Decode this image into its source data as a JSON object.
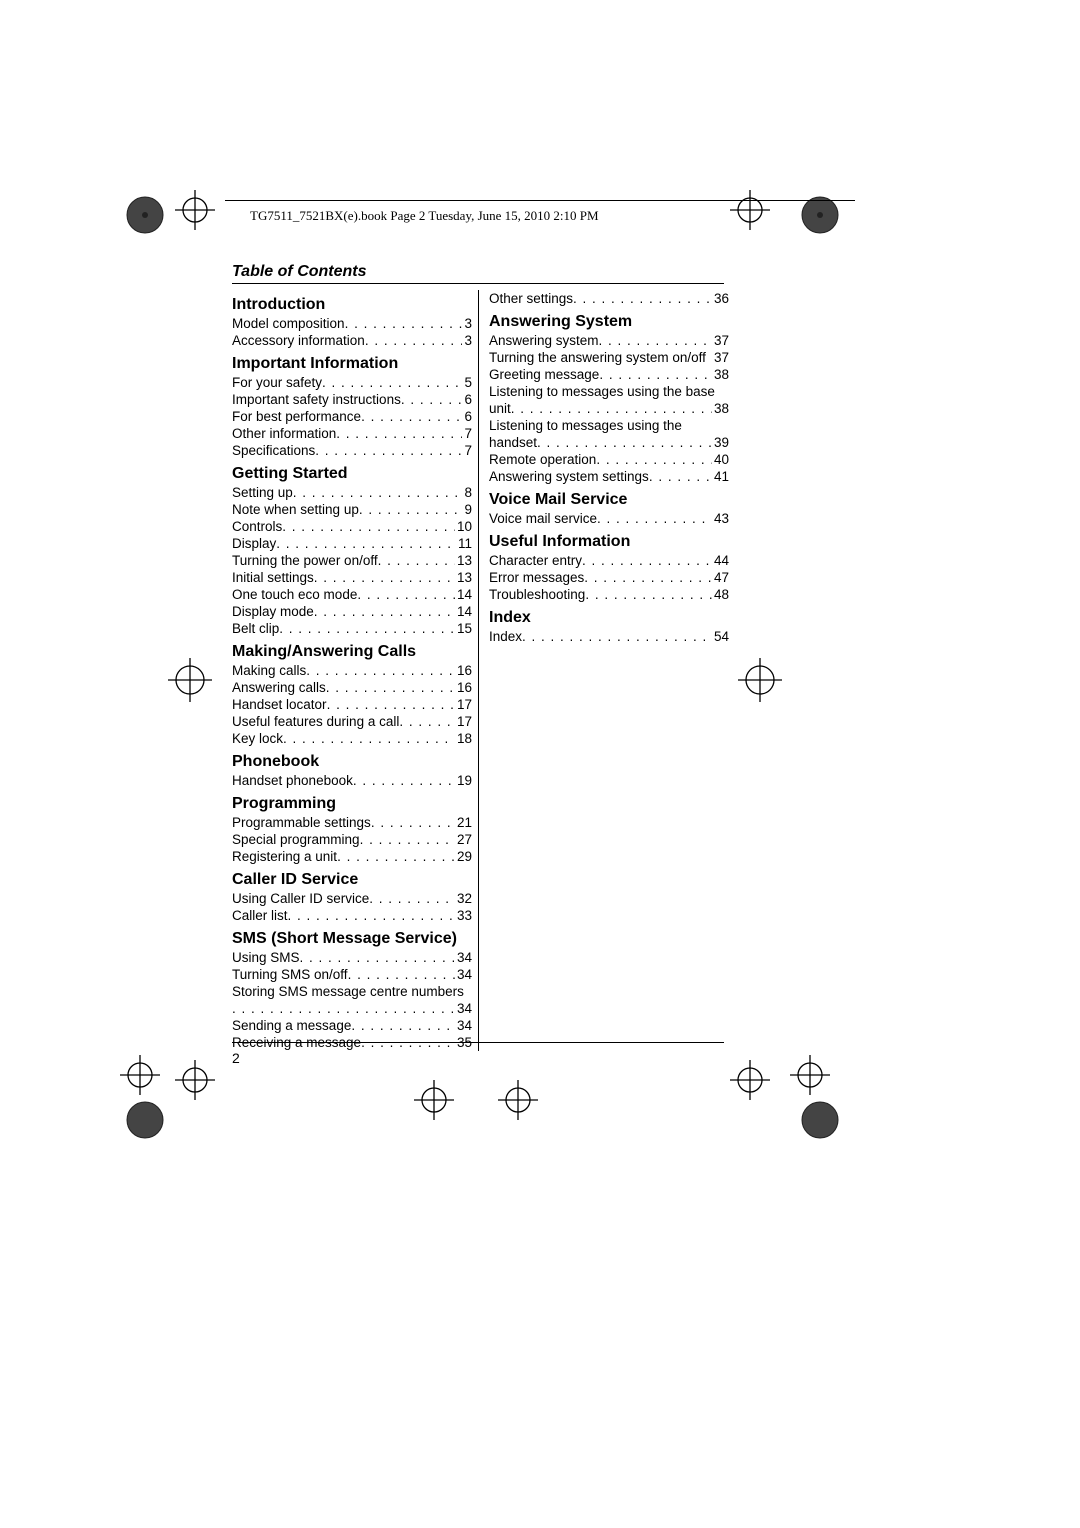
{
  "header_line": "TG7511_7521BX(e).book  Page 2  Tuesday, June 15, 2010  2:10 PM",
  "toc_title": "Table of Contents",
  "page_number": "2",
  "left_sections": [
    {
      "title": "Introduction",
      "entries": [
        {
          "label": "Model composition",
          "page": "3"
        },
        {
          "label": "Accessory information",
          "page": "3"
        }
      ]
    },
    {
      "title": "Important Information",
      "entries": [
        {
          "label": "For your safety",
          "page": "5"
        },
        {
          "label": "Important safety instructions",
          "page": "6"
        },
        {
          "label": "For best performance",
          "page": "6"
        },
        {
          "label": "Other information",
          "page": "7"
        },
        {
          "label": "Specifications",
          "page": "7"
        }
      ]
    },
    {
      "title": "Getting Started",
      "entries": [
        {
          "label": "Setting up",
          "page": "8"
        },
        {
          "label": "Note when setting up",
          "page": "9"
        },
        {
          "label": "Controls",
          "page": "10"
        },
        {
          "label": "Display",
          "page": "11"
        },
        {
          "label": "Turning the power on/off",
          "page": "13"
        },
        {
          "label": "Initial settings",
          "page": "13"
        },
        {
          "label": "One touch eco mode",
          "page": "14"
        },
        {
          "label": "Display mode",
          "page": "14"
        },
        {
          "label": "Belt clip",
          "page": "15"
        }
      ]
    },
    {
      "title": "Making/Answering Calls",
      "entries": [
        {
          "label": "Making calls",
          "page": "16"
        },
        {
          "label": "Answering calls",
          "page": "16"
        },
        {
          "label": "Handset locator",
          "page": "17"
        },
        {
          "label": "Useful features during a call",
          "page": "17"
        },
        {
          "label": "Key lock",
          "page": "18"
        }
      ]
    },
    {
      "title": "Phonebook",
      "entries": [
        {
          "label": "Handset phonebook",
          "page": "19"
        }
      ]
    },
    {
      "title": "Programming",
      "entries": [
        {
          "label": "Programmable settings",
          "page": "21"
        },
        {
          "label": "Special programming",
          "page": "27"
        },
        {
          "label": "Registering a unit",
          "page": "29"
        }
      ]
    },
    {
      "title": "Caller ID Service",
      "entries": [
        {
          "label": "Using Caller ID service",
          "page": "32"
        },
        {
          "label": "Caller list",
          "page": "33"
        }
      ]
    },
    {
      "title": "SMS (Short Message Service)",
      "entries": [
        {
          "label": "Using SMS",
          "page": "34"
        },
        {
          "label": "Turning SMS on/off",
          "page": "34"
        },
        {
          "label": "Storing SMS message centre numbers",
          "wrapLine2": "",
          "page": "34",
          "wrap": true
        },
        {
          "label": "Sending a message",
          "page": "34"
        },
        {
          "label": "Receiving a message",
          "page": "35"
        }
      ]
    }
  ],
  "right_pre_entries": [
    {
      "label": "Other settings",
      "page": "36"
    }
  ],
  "right_sections": [
    {
      "title": "Answering System",
      "entries": [
        {
          "label": "Answering system",
          "page": "37"
        },
        {
          "label": "Turning the answering system on/off",
          "page": "37",
          "tight": true
        },
        {
          "label": "Greeting message",
          "page": "38"
        },
        {
          "label": "Listening to messages using the base",
          "wrapLine2": "unit",
          "page": "38",
          "wrap": true
        },
        {
          "label": "Listening to messages using the",
          "wrapLine2": "handset",
          "page": "39",
          "wrap": true
        },
        {
          "label": "Remote operation",
          "page": "40"
        },
        {
          "label": "Answering system settings",
          "page": "41"
        }
      ]
    },
    {
      "title": "Voice Mail Service",
      "entries": [
        {
          "label": "Voice mail service",
          "page": "43"
        }
      ]
    },
    {
      "title": "Useful Information",
      "entries": [
        {
          "label": "Character entry",
          "page": "44"
        },
        {
          "label": "Error messages",
          "page": "47"
        },
        {
          "label": "Troubleshooting",
          "page": "48"
        }
      ]
    },
    {
      "title": "Index",
      "entries": [
        {
          "label": "Index",
          "page": "54"
        }
      ]
    }
  ]
}
